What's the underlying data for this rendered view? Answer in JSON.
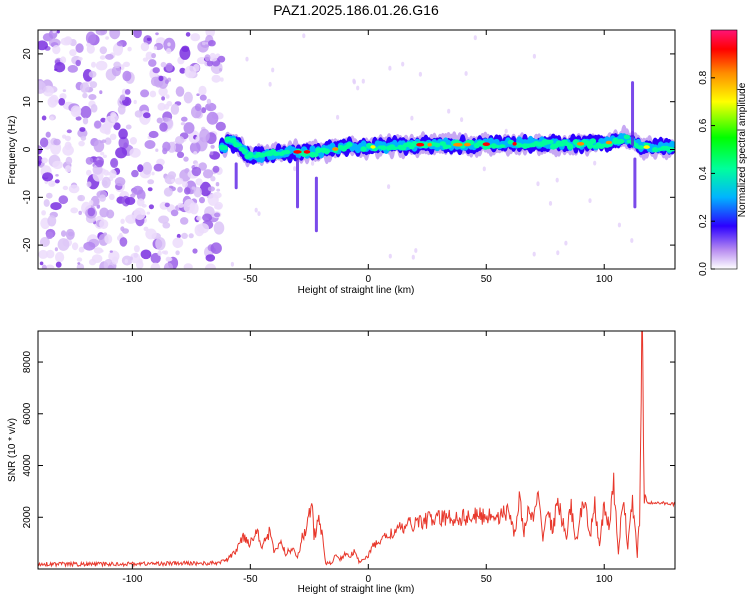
{
  "title": "PAZ1.2025.186.01.26.G16",
  "chart_data": [
    {
      "type": "heatmap",
      "xlabel": "Height of straight line (km)",
      "ylabel": "Frequency (Hz)",
      "xlim": [
        -140,
        130
      ],
      "ylim": [
        -25,
        25
      ],
      "xticks": [
        -100,
        -50,
        0,
        50,
        100
      ],
      "yticks": [
        -20,
        -10,
        0,
        10,
        20
      ],
      "colorbar": {
        "label": "Normalized spectral amplitude",
        "range": [
          0,
          1
        ],
        "ticks": [
          0.0,
          0.2,
          0.4,
          0.6,
          0.8
        ],
        "tick_labels": [
          "0.0",
          "0.2",
          "0.4",
          "0.6",
          "0.8"
        ]
      },
      "features": {
        "noise_region_x": [
          -140,
          -62
        ],
        "signal_band": [
          {
            "x": -60,
            "f": 2.5
          },
          {
            "x": -55,
            "f": 0.5
          },
          {
            "x": -50,
            "f": -1.5
          },
          {
            "x": -40,
            "f": -1.0
          },
          {
            "x": -30,
            "f": -0.5
          },
          {
            "x": -20,
            "f": -0.5
          },
          {
            "x": -10,
            "f": 0.5
          },
          {
            "x": 0,
            "f": 0.5
          },
          {
            "x": 20,
            "f": 1.0
          },
          {
            "x": 40,
            "f": 1.0
          },
          {
            "x": 60,
            "f": 1.2
          },
          {
            "x": 80,
            "f": 1.2
          },
          {
            "x": 100,
            "f": 1.2
          },
          {
            "x": 110,
            "f": 2.5
          },
          {
            "x": 115,
            "f": 0.5
          },
          {
            "x": 130,
            "f": 0.5
          }
        ]
      }
    },
    {
      "type": "line",
      "xlabel": "Height of straight line (km)",
      "ylabel": "SNR (10 * v/v)",
      "xlim": [
        -140,
        130
      ],
      "ylim": [
        0,
        9200
      ],
      "xticks": [
        -100,
        -50,
        0,
        50,
        100
      ],
      "yticks": [
        2000,
        4000,
        6000,
        8000
      ],
      "color": "#e8382c",
      "series": [
        {
          "x": [
            -140,
            -120,
            -100,
            -80,
            -65,
            -60,
            -56,
            -53,
            -50,
            -47,
            -45,
            -42,
            -40,
            -37,
            -35,
            -32,
            -30,
            -28,
            -26,
            -24,
            -23,
            -22,
            -21,
            -20,
            -18,
            -16,
            -14,
            -12,
            -10,
            -8,
            -6,
            -4,
            -2,
            0,
            2,
            5,
            10,
            15,
            20,
            25,
            30,
            40,
            50,
            60,
            62,
            64,
            66,
            68,
            70,
            72,
            74,
            76,
            78,
            80,
            82,
            84,
            86,
            88,
            90,
            92,
            94,
            96,
            98,
            100,
            102,
            104,
            106,
            108,
            110,
            112,
            114,
            115,
            116,
            117,
            118,
            120,
            125,
            130
          ],
          "y": [
            200,
            180,
            200,
            220,
            220,
            350,
            700,
            1300,
            1000,
            1500,
            900,
            1400,
            700,
            1000,
            600,
            800,
            500,
            1200,
            1600,
            2600,
            1300,
            1400,
            2200,
            1500,
            250,
            200,
            500,
            400,
            550,
            500,
            650,
            300,
            400,
            500,
            900,
            1100,
            1400,
            1600,
            1800,
            1900,
            1950,
            2000,
            2050,
            2150,
            1400,
            2600,
            1500,
            2200,
            1900,
            2700,
            1300,
            2300,
            1500,
            2500,
            2000,
            1300,
            2400,
            1000,
            2200,
            2300,
            1200,
            2600,
            800,
            2500,
            1600,
            3200,
            600,
            3000,
            800,
            2700,
            500,
            2000,
            9000,
            3000,
            2600,
            2550,
            2550,
            2500
          ]
        }
      ]
    }
  ]
}
